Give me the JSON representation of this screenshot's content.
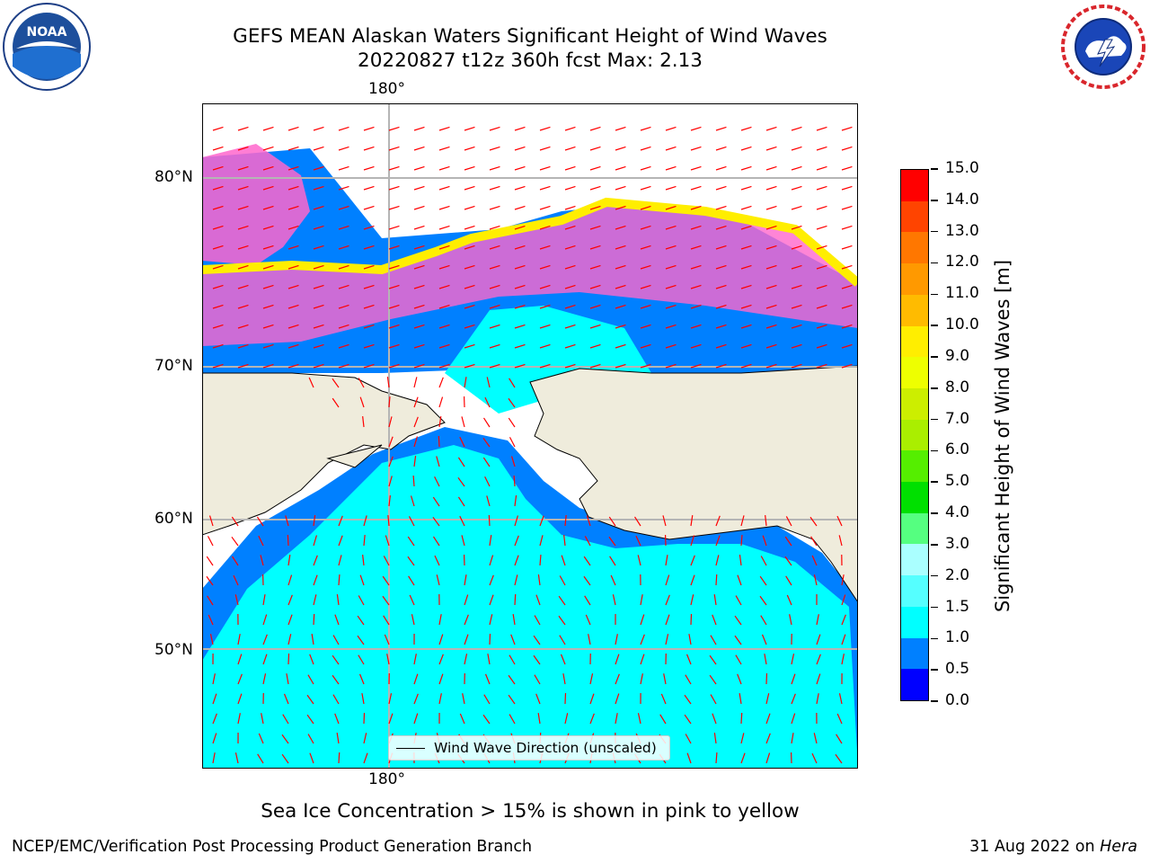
{
  "header": {
    "title_line1": "GEFS MEAN Alaskan Waters Significant Height of Wind Waves",
    "title_line2": "20220827 t12z 360h fcst   Max: 2.13"
  },
  "logos": {
    "left": "NOAA",
    "right": "NATIONAL WEATHER SERVICE"
  },
  "map": {
    "lon_label": "180°",
    "lat_labels": [
      "80°N",
      "70°N",
      "60°N",
      "50°N"
    ],
    "land_color": "#efecdc",
    "ocean_shallow_color": "#00ffff",
    "ocean_low_color": "#0080ff",
    "arrow_color": "#ff0000",
    "legend_label": "Wind Wave Direction (unscaled)"
  },
  "colorbar": {
    "title": "Significant Height of Wind Waves [m]",
    "ticks": [
      "0.0",
      "0.5",
      "1.0",
      "1.5",
      "2.0",
      "3.0",
      "4.0",
      "5.0",
      "6.0",
      "7.0",
      "8.0",
      "9.0",
      "10.0",
      "11.0",
      "12.0",
      "13.0",
      "14.0",
      "15.0"
    ],
    "colors": [
      "#0000ff",
      "#0080ff",
      "#00ffff",
      "#55ffff",
      "#aaffff",
      "#55ff80",
      "#00e000",
      "#55ee00",
      "#aaee00",
      "#ccee00",
      "#eeff00",
      "#ffee00",
      "#ffbb00",
      "#ff9900",
      "#ff7700",
      "#ff4400",
      "#ff0000"
    ]
  },
  "notes": {
    "ice": "Sea Ice Concentration > 15% is shown in pink to yellow",
    "footer_left": "NCEP/EMC/Verification Post Processing Product Generation Branch",
    "footer_date": "31 Aug 2022 on",
    "footer_host": "Hera"
  }
}
